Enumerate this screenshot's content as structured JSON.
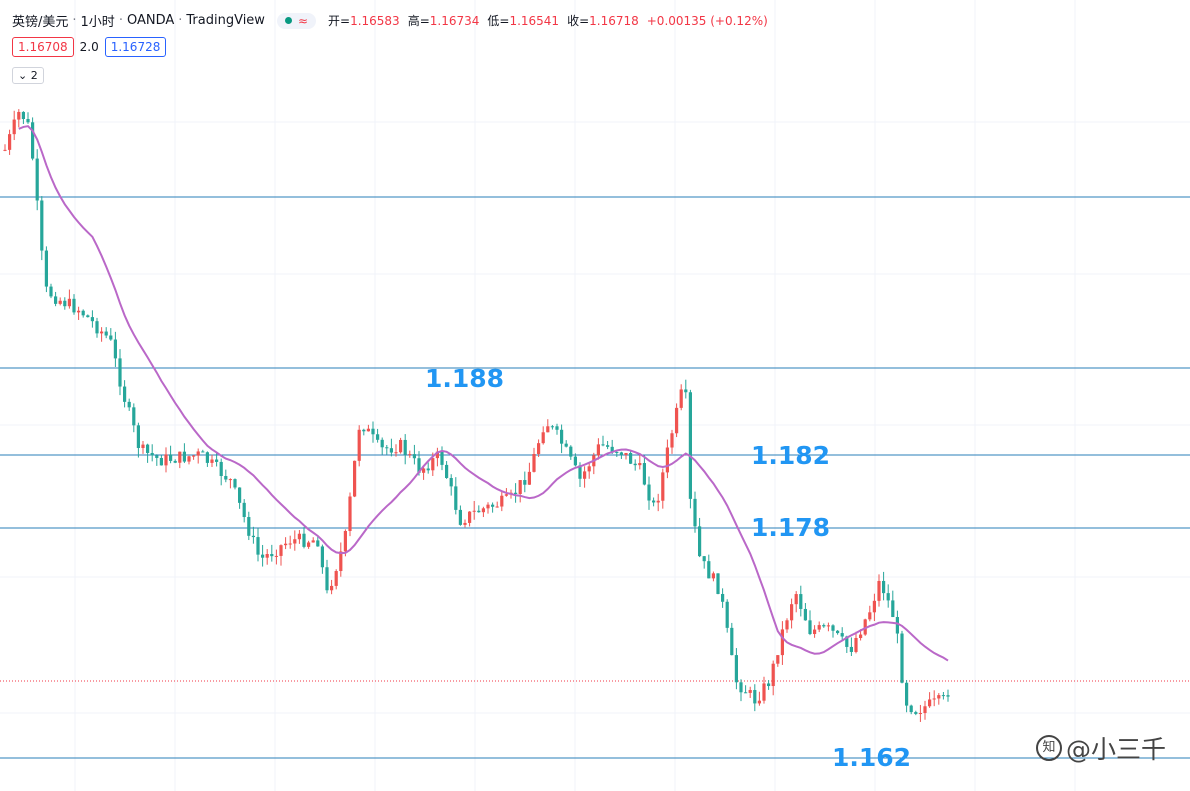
{
  "header": {
    "symbol": "英镑/美元",
    "interval": "1小时",
    "broker": "OANDA",
    "platform": "TradingView",
    "badge": "≈",
    "ohlc": [
      {
        "label": "开=",
        "value": "1.16583"
      },
      {
        "label": "高=",
        "value": "1.16734"
      },
      {
        "label": "低=",
        "value": "1.16541"
      },
      {
        "label": "收=",
        "value": "1.16718"
      }
    ],
    "change": "+0.00135 (+0.12%)"
  },
  "price_boxes": {
    "sell": "1.16708",
    "spread": "2.0",
    "buy": "1.16728"
  },
  "indicator_toggle": "2",
  "levels": [
    "1.188",
    "1.182",
    "1.178",
    "1.162"
  ],
  "watermark": "@小三千"
}
